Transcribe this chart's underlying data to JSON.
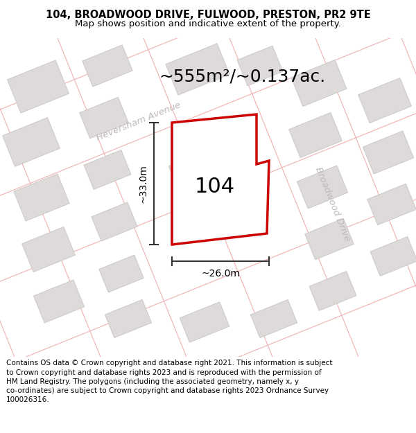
{
  "title": "104, BROADWOOD DRIVE, FULWOOD, PRESTON, PR2 9TE",
  "subtitle": "Map shows position and indicative extent of the property.",
  "area_label": "~555m²/~0.137ac.",
  "property_number": "104",
  "dim_vertical": "~33.0m",
  "dim_horizontal": "~26.0m",
  "street1": "Heversham Avenue",
  "street2": "Broadwood Drive",
  "footer_line1": "Contains OS data © Crown copyright and database right 2021. This information is subject",
  "footer_line2": "to Crown copyright and database rights 2023 and is reproduced with the permission of",
  "footer_line3": "HM Land Registry. The polygons (including the associated geometry, namely x, y",
  "footer_line4": "co-ordinates) are subject to Crown copyright and database rights 2023 Ordnance Survey",
  "footer_line5": "100026316.",
  "map_bg": "#f5f0f0",
  "header_bg": "#ffffff",
  "footer_bg": "#ffffff",
  "plot_color": "#cc0000",
  "building_fill": "#dedada",
  "building_edge": "#c8c4c4",
  "street_color": "#f0b0b0",
  "dim_color": "#333333",
  "street_label_color": "#c0b8b8",
  "title_fontsize": 10.5,
  "subtitle_fontsize": 9.5,
  "area_fontsize": 18,
  "prop_num_fontsize": 22,
  "dim_fontsize": 10,
  "street_fontsize": 9.5,
  "footer_fontsize": 7.5
}
